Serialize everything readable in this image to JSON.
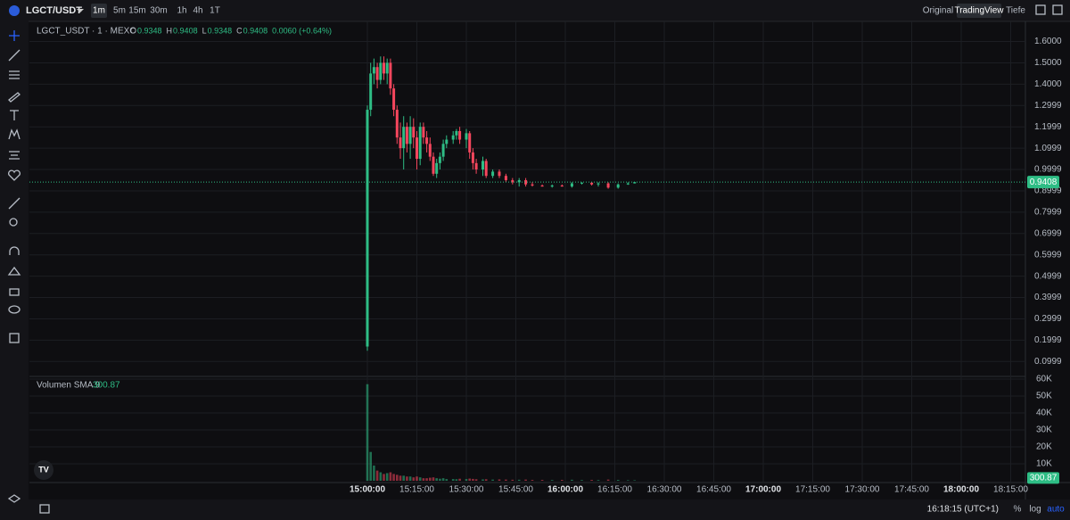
{
  "toolbar": {
    "symbol": "LGCT/USDT",
    "intervals": [
      "1m",
      "5m",
      "15m",
      "30m",
      "1h",
      "4h",
      "1T"
    ],
    "views": [
      "Original",
      "TradingView",
      "Tiefe"
    ]
  },
  "legend": {
    "title": "LGCT_USDT · 1 · MEXC",
    "open": {
      "label": "O",
      "value": "0.9348"
    },
    "high": {
      "label": "H",
      "value": "0.9408"
    },
    "low": {
      "label": "L",
      "value": "0.9348"
    },
    "close": {
      "label": "C",
      "value": "0.9408"
    },
    "change": "0.0060 (+0.64%)"
  },
  "chart_data": {
    "type": "candlestick",
    "up_color": "#2ebd85",
    "down_color": "#f6465d",
    "candles": [
      {
        "t": "15:00",
        "o": 0.17,
        "h": 1.3,
        "l": 0.15,
        "c": 1.28,
        "v": 57000
      },
      {
        "t": "15:01",
        "o": 1.28,
        "h": 1.5,
        "l": 1.25,
        "c": 1.45,
        "v": 17000
      },
      {
        "t": "15:02",
        "o": 1.45,
        "h": 1.52,
        "l": 1.4,
        "c": 1.48,
        "v": 9000
      },
      {
        "t": "15:03",
        "o": 1.48,
        "h": 1.5,
        "l": 1.38,
        "c": 1.42,
        "v": 6000
      },
      {
        "t": "15:04",
        "o": 1.42,
        "h": 1.53,
        "l": 1.4,
        "c": 1.5,
        "v": 5000
      },
      {
        "t": "15:05",
        "o": 1.5,
        "h": 1.53,
        "l": 1.42,
        "c": 1.45,
        "v": 4000
      },
      {
        "t": "15:06",
        "o": 1.45,
        "h": 1.52,
        "l": 1.4,
        "c": 1.5,
        "v": 4500
      },
      {
        "t": "15:07",
        "o": 1.5,
        "h": 1.52,
        "l": 1.35,
        "c": 1.38,
        "v": 5000
      },
      {
        "t": "15:08",
        "o": 1.38,
        "h": 1.4,
        "l": 1.25,
        "c": 1.28,
        "v": 4000
      },
      {
        "t": "15:09",
        "o": 1.28,
        "h": 1.3,
        "l": 1.12,
        "c": 1.15,
        "v": 3500
      },
      {
        "t": "15:10",
        "o": 1.15,
        "h": 1.22,
        "l": 1.05,
        "c": 1.1,
        "v": 3000
      },
      {
        "t": "15:11",
        "o": 1.1,
        "h": 1.25,
        "l": 1.0,
        "c": 1.2,
        "v": 3000
      },
      {
        "t": "15:12",
        "o": 1.2,
        "h": 1.22,
        "l": 1.08,
        "c": 1.12,
        "v": 2500
      },
      {
        "t": "15:13",
        "o": 1.12,
        "h": 1.25,
        "l": 1.05,
        "c": 1.2,
        "v": 2500
      },
      {
        "t": "15:14",
        "o": 1.2,
        "h": 1.24,
        "l": 1.1,
        "c": 1.15,
        "v": 2000
      },
      {
        "t": "15:15",
        "o": 1.15,
        "h": 1.18,
        "l": 1.0,
        "c": 1.05,
        "v": 2500
      },
      {
        "t": "15:16",
        "o": 1.05,
        "h": 1.22,
        "l": 1.02,
        "c": 1.2,
        "v": 2000
      },
      {
        "t": "15:17",
        "o": 1.2,
        "h": 1.22,
        "l": 1.12,
        "c": 1.15,
        "v": 1500
      },
      {
        "t": "15:18",
        "o": 1.15,
        "h": 1.18,
        "l": 1.08,
        "c": 1.12,
        "v": 1500
      },
      {
        "t": "15:19",
        "o": 1.12,
        "h": 1.15,
        "l": 1.04,
        "c": 1.06,
        "v": 1800
      },
      {
        "t": "15:20",
        "o": 1.06,
        "h": 1.08,
        "l": 0.97,
        "c": 0.98,
        "v": 2000
      },
      {
        "t": "15:21",
        "o": 0.98,
        "h": 1.05,
        "l": 0.96,
        "c": 1.03,
        "v": 1500
      },
      {
        "t": "15:22",
        "o": 1.03,
        "h": 1.08,
        "l": 1.0,
        "c": 1.06,
        "v": 1200
      },
      {
        "t": "15:23",
        "o": 1.06,
        "h": 1.14,
        "l": 1.04,
        "c": 1.12,
        "v": 1500
      },
      {
        "t": "15:24",
        "o": 1.12,
        "h": 1.16,
        "l": 1.1,
        "c": 1.14,
        "v": 1000
      },
      {
        "t": "15:26",
        "o": 1.14,
        "h": 1.18,
        "l": 1.12,
        "c": 1.16,
        "v": 1000
      },
      {
        "t": "15:27",
        "o": 1.16,
        "h": 1.19,
        "l": 1.14,
        "c": 1.18,
        "v": 900
      },
      {
        "t": "15:28",
        "o": 1.18,
        "h": 1.2,
        "l": 1.12,
        "c": 1.14,
        "v": 1200
      },
      {
        "t": "15:30",
        "o": 1.14,
        "h": 1.19,
        "l": 1.1,
        "c": 1.17,
        "v": 1000
      },
      {
        "t": "15:31",
        "o": 1.17,
        "h": 1.18,
        "l": 1.05,
        "c": 1.08,
        "v": 1300
      },
      {
        "t": "15:32",
        "o": 1.08,
        "h": 1.1,
        "l": 1.0,
        "c": 1.03,
        "v": 1100
      },
      {
        "t": "15:33",
        "o": 1.03,
        "h": 1.05,
        "l": 0.98,
        "c": 1.0,
        "v": 900
      },
      {
        "t": "15:35",
        "o": 1.0,
        "h": 1.06,
        "l": 0.97,
        "c": 1.04,
        "v": 800
      },
      {
        "t": "15:36",
        "o": 1.04,
        "h": 1.05,
        "l": 0.96,
        "c": 0.97,
        "v": 900
      },
      {
        "t": "15:38",
        "o": 0.97,
        "h": 1.0,
        "l": 0.96,
        "c": 0.99,
        "v": 700
      },
      {
        "t": "15:40",
        "o": 0.99,
        "h": 1.0,
        "l": 0.96,
        "c": 0.97,
        "v": 800
      },
      {
        "t": "15:42",
        "o": 0.97,
        "h": 0.98,
        "l": 0.94,
        "c": 0.95,
        "v": 700
      },
      {
        "t": "15:44",
        "o": 0.95,
        "h": 0.96,
        "l": 0.93,
        "c": 0.94,
        "v": 600
      },
      {
        "t": "15:46",
        "o": 0.94,
        "h": 0.96,
        "l": 0.92,
        "c": 0.95,
        "v": 600
      },
      {
        "t": "15:48",
        "o": 0.95,
        "h": 0.96,
        "l": 0.92,
        "c": 0.93,
        "v": 700
      },
      {
        "t": "15:50",
        "o": 0.93,
        "h": 0.94,
        "l": 0.92,
        "c": 0.925,
        "v": 500
      },
      {
        "t": "15:53",
        "o": 0.925,
        "h": 0.93,
        "l": 0.92,
        "c": 0.92,
        "v": 500
      },
      {
        "t": "15:56",
        "o": 0.92,
        "h": 0.93,
        "l": 0.915,
        "c": 0.925,
        "v": 400
      },
      {
        "t": "15:59",
        "o": 0.925,
        "h": 0.93,
        "l": 0.92,
        "c": 0.92,
        "v": 500
      },
      {
        "t": "16:02",
        "o": 0.92,
        "h": 0.94,
        "l": 0.915,
        "c": 0.935,
        "v": 600
      },
      {
        "t": "16:05",
        "o": 0.935,
        "h": 0.94,
        "l": 0.93,
        "c": 0.938,
        "v": 400
      },
      {
        "t": "16:08",
        "o": 0.938,
        "h": 0.94,
        "l": 0.925,
        "c": 0.93,
        "v": 500
      },
      {
        "t": "16:10",
        "o": 0.93,
        "h": 0.94,
        "l": 0.92,
        "c": 0.935,
        "v": 400
      },
      {
        "t": "16:13",
        "o": 0.935,
        "h": 0.94,
        "l": 0.91,
        "c": 0.915,
        "v": 700
      },
      {
        "t": "16:16",
        "o": 0.915,
        "h": 0.935,
        "l": 0.91,
        "c": 0.93,
        "v": 500
      },
      {
        "t": "16:19",
        "o": 0.93,
        "h": 0.94,
        "l": 0.928,
        "c": 0.9348,
        "v": 300
      },
      {
        "t": "16:21",
        "o": 0.9348,
        "h": 0.9408,
        "l": 0.9348,
        "c": 0.9408,
        "v": 300
      }
    ],
    "ylim": [
      0.03,
      1.69
    ],
    "yticks": [
      {
        "value": 1.6,
        "label": "1.6000"
      },
      {
        "value": 1.5,
        "label": "1.5000"
      },
      {
        "value": 1.4,
        "label": "1.4000"
      },
      1.2999,
      1.1999,
      1.0999,
      0.9999,
      0.8999,
      0.7999,
      0.6999,
      0.5999,
      0.4999,
      0.3999,
      0.2999,
      0.1999,
      0.0999
    ],
    "last_price": {
      "value": 0.9408,
      "label": "0.9408"
    },
    "volume": {
      "label": "Volumen SMA 9",
      "sma": {
        "value": 300.87,
        "label": "300.87"
      },
      "ylim": [
        0,
        61600
      ],
      "yticks": [
        {
          "value": 60000,
          "label": "60K"
        },
        {
          "value": 50000,
          "label": "50K"
        },
        {
          "value": 40000,
          "label": "40K"
        },
        {
          "value": 30000,
          "label": "30K"
        },
        {
          "value": 20000,
          "label": "20K"
        },
        {
          "value": 10000,
          "label": "10K"
        }
      ]
    },
    "time_axis": [
      "15:00:00",
      "15:15:00",
      "15:30:00",
      "15:45:00",
      "16:00:00",
      "16:15:00",
      "16:30:00",
      "16:45:00",
      "17:00:00",
      "17:15:00",
      "17:30:00",
      "17:45:00",
      "18:00:00",
      "18:15:00"
    ]
  },
  "status": {
    "clock": "16:18:15 (UTC+1)",
    "percent": "%",
    "log": "log",
    "auto": "auto"
  }
}
